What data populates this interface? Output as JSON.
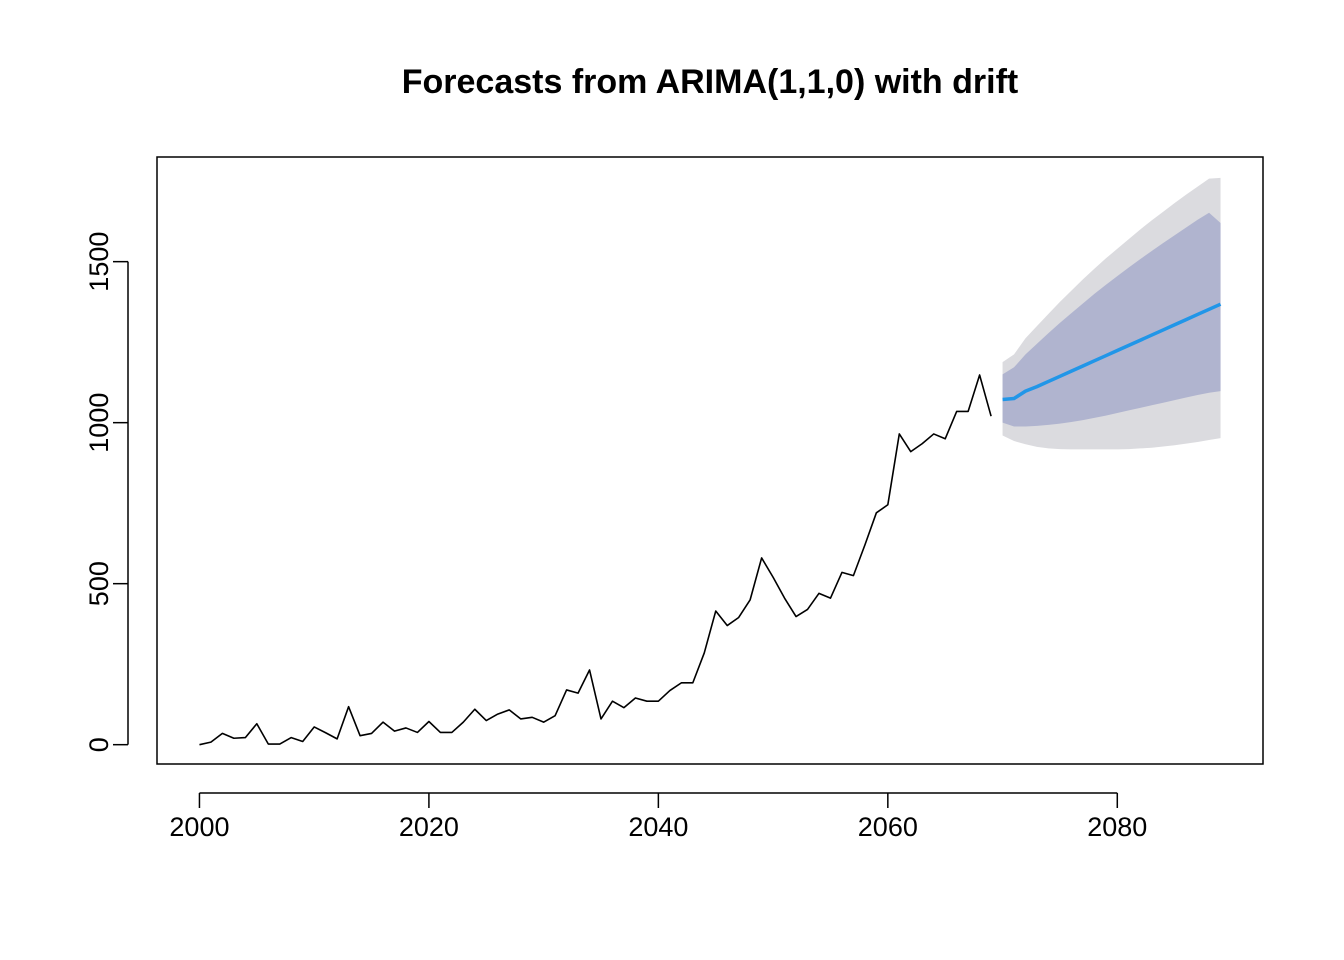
{
  "chart_data": {
    "type": "line",
    "title": "Forecasts from ARIMA(1,1,0) with drift",
    "xlabel": "",
    "ylabel": "",
    "xlim": [
      1996.3,
      2092.7
    ],
    "ylim": [
      -60,
      1825
    ],
    "x_ticks": [
      2000,
      2020,
      2040,
      2060,
      2080
    ],
    "y_ticks": [
      0,
      500,
      1000,
      1500
    ],
    "x_tick_labels": [
      "2000",
      "2020",
      "2040",
      "2060",
      "2080"
    ],
    "y_tick_labels": [
      "0",
      "500",
      "1000",
      "1500"
    ],
    "grid": false,
    "legend": "none",
    "series": [
      {
        "role": "observed",
        "color": "#000000",
        "x": [
          2000,
          2001,
          2002,
          2003,
          2004,
          2005,
          2006,
          2007,
          2008,
          2009,
          2010,
          2011,
          2012,
          2013,
          2014,
          2015,
          2016,
          2017,
          2018,
          2019,
          2020,
          2021,
          2022,
          2023,
          2024,
          2025,
          2026,
          2027,
          2028,
          2029,
          2030,
          2031,
          2032,
          2033,
          2034,
          2035,
          2036,
          2037,
          2038,
          2039,
          2040,
          2041,
          2042,
          2043,
          2044,
          2045,
          2046,
          2047,
          2048,
          2049,
          2050,
          2051,
          2052,
          2053,
          2054,
          2055,
          2056,
          2057,
          2058,
          2059,
          2060,
          2061,
          2062,
          2063,
          2064,
          2065,
          2066,
          2067,
          2068,
          2069
        ],
        "values": [
          0,
          8,
          35,
          20,
          22,
          65,
          2,
          2,
          22,
          10,
          55,
          37,
          18,
          118,
          28,
          35,
          70,
          42,
          52,
          38,
          72,
          38,
          38,
          70,
          110,
          75,
          95,
          108,
          80,
          85,
          70,
          90,
          170,
          160,
          232,
          80,
          135,
          115,
          145,
          135,
          135,
          168,
          192,
          192,
          285,
          415,
          370,
          395,
          450,
          580,
          520,
          455,
          398,
          420,
          470,
          455,
          535,
          525,
          620,
          720,
          745,
          965,
          910,
          935,
          965,
          950,
          1035,
          1035,
          1148,
          1020
        ]
      },
      {
        "role": "forecast_mean",
        "color": "#2196e8",
        "x": [
          2070,
          2071,
          2072,
          2073,
          2074,
          2075,
          2076,
          2077,
          2078,
          2079,
          2080,
          2081,
          2082,
          2083,
          2084,
          2085,
          2086,
          2087,
          2088,
          2089
        ],
        "values": [
          1072,
          1075,
          1098,
          1112,
          1128,
          1144,
          1160,
          1176,
          1192,
          1208,
          1224,
          1240,
          1256,
          1272,
          1288,
          1304,
          1320,
          1336,
          1352,
          1368
        ]
      }
    ],
    "intervals": [
      {
        "level": 95,
        "color": "#dbdbdf",
        "x": [
          2070,
          2071,
          2072,
          2073,
          2074,
          2075,
          2076,
          2077,
          2078,
          2079,
          2080,
          2081,
          2082,
          2083,
          2084,
          2085,
          2086,
          2087,
          2088,
          2089
        ],
        "lower": [
          960,
          943,
          933,
          925,
          920,
          918,
          917,
          917,
          917,
          917,
          917,
          918,
          920,
          922,
          926,
          930,
          935,
          940,
          946,
          952
        ],
        "upper": [
          1188,
          1212,
          1262,
          1300,
          1338,
          1375,
          1410,
          1445,
          1478,
          1510,
          1540,
          1570,
          1600,
          1628,
          1655,
          1682,
          1708,
          1733,
          1758,
          1760
        ]
      },
      {
        "level": 80,
        "color": "#b0b4cf",
        "x": [
          2070,
          2071,
          2072,
          2073,
          2074,
          2075,
          2076,
          2077,
          2078,
          2079,
          2080,
          2081,
          2082,
          2083,
          2084,
          2085,
          2086,
          2087,
          2088,
          2089
        ],
        "lower": [
          1000,
          988,
          988,
          990,
          993,
          997,
          1002,
          1008,
          1015,
          1022,
          1030,
          1038,
          1046,
          1054,
          1062,
          1070,
          1078,
          1086,
          1093,
          1098
        ],
        "upper": [
          1150,
          1172,
          1212,
          1245,
          1278,
          1310,
          1340,
          1370,
          1400,
          1428,
          1455,
          1482,
          1508,
          1533,
          1558,
          1582,
          1606,
          1630,
          1652,
          1620
        ]
      }
    ]
  }
}
